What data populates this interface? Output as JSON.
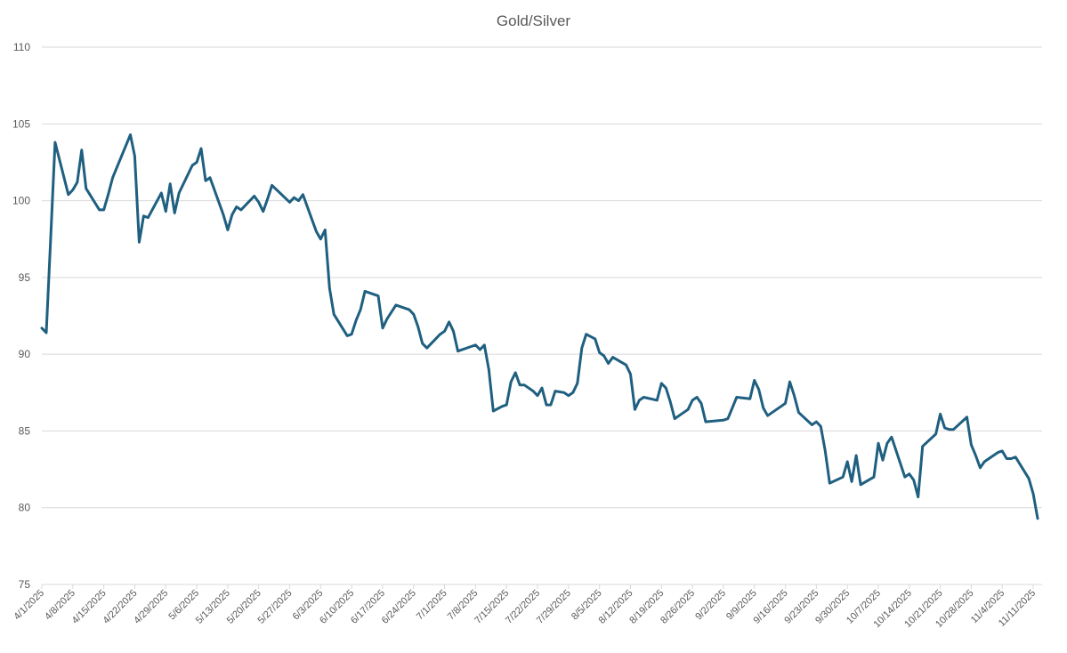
{
  "chart_data": {
    "type": "line",
    "title": "Gold/Silver",
    "xlabel": "",
    "ylabel": "",
    "ylim": [
      75,
      110
    ],
    "yticks": [
      75,
      80,
      85,
      90,
      95,
      100,
      105,
      110
    ],
    "grid": true,
    "legend": "none",
    "x_start": "4/1/2025",
    "x_end": "11/13/2025",
    "xtick_labels": [
      "4/1/2025",
      "4/8/2025",
      "4/15/2025",
      "4/22/2025",
      "4/29/2025",
      "5/6/2025",
      "5/13/2025",
      "5/20/2025",
      "5/27/2025",
      "6/3/2025",
      "6/10/2025",
      "6/17/2025",
      "6/24/2025",
      "7/1/2025",
      "7/8/2025",
      "7/15/2025",
      "7/22/2025",
      "7/29/2025",
      "8/5/2025",
      "8/12/2025",
      "8/19/2025",
      "8/26/2025",
      "9/2/2025",
      "9/9/2025",
      "9/16/2025",
      "9/23/2025",
      "9/30/2025",
      "10/7/2025",
      "10/14/2025",
      "10/21/2025",
      "10/28/2025",
      "11/4/2025",
      "11/11/2025"
    ],
    "series": [
      {
        "name": "",
        "color": "#1f5f80",
        "points": [
          [
            "4/1/2025",
            91.7
          ],
          [
            "4/2/2025",
            91.4
          ],
          [
            "4/3/2025",
            97.5
          ],
          [
            "4/4/2025",
            103.8
          ],
          [
            "4/7/2025",
            100.4
          ],
          [
            "4/8/2025",
            100.7
          ],
          [
            "4/9/2025",
            101.2
          ],
          [
            "4/10/2025",
            103.3
          ],
          [
            "4/11/2025",
            100.8
          ],
          [
            "4/14/2025",
            99.4
          ],
          [
            "4/15/2025",
            99.4
          ],
          [
            "4/16/2025",
            100.4
          ],
          [
            "4/17/2025",
            101.5
          ],
          [
            "4/21/2025",
            104.3
          ],
          [
            "4/22/2025",
            102.9
          ],
          [
            "4/23/2025",
            97.3
          ],
          [
            "4/24/2025",
            99.0
          ],
          [
            "4/25/2025",
            98.9
          ],
          [
            "4/28/2025",
            100.5
          ],
          [
            "4/29/2025",
            99.3
          ],
          [
            "4/30/2025",
            101.1
          ],
          [
            "5/1/2025",
            99.2
          ],
          [
            "5/2/2025",
            100.5
          ],
          [
            "5/5/2025",
            102.3
          ],
          [
            "5/6/2025",
            102.5
          ],
          [
            "5/7/2025",
            103.4
          ],
          [
            "5/8/2025",
            101.3
          ],
          [
            "5/9/2025",
            101.5
          ],
          [
            "5/12/2025",
            99.1
          ],
          [
            "5/13/2025",
            98.1
          ],
          [
            "5/14/2025",
            99.1
          ],
          [
            "5/15/2025",
            99.6
          ],
          [
            "5/16/2025",
            99.4
          ],
          [
            "5/19/2025",
            100.3
          ],
          [
            "5/20/2025",
            99.9
          ],
          [
            "5/21/2025",
            99.3
          ],
          [
            "5/22/2025",
            100.1
          ],
          [
            "5/23/2025",
            101.0
          ],
          [
            "5/27/2025",
            99.9
          ],
          [
            "5/28/2025",
            100.2
          ],
          [
            "5/29/2025",
            100.0
          ],
          [
            "5/30/2025",
            100.4
          ],
          [
            "6/2/2025",
            98.0
          ],
          [
            "6/3/2025",
            97.5
          ],
          [
            "6/4/2025",
            98.1
          ],
          [
            "6/5/2025",
            94.3
          ],
          [
            "6/6/2025",
            92.6
          ],
          [
            "6/9/2025",
            91.2
          ],
          [
            "6/10/2025",
            91.3
          ],
          [
            "6/11/2025",
            92.2
          ],
          [
            "6/12/2025",
            92.9
          ],
          [
            "6/13/2025",
            94.1
          ],
          [
            "6/16/2025",
            93.8
          ],
          [
            "6/17/2025",
            91.7
          ],
          [
            "6/18/2025",
            92.3
          ],
          [
            "6/20/2025",
            93.2
          ],
          [
            "6/23/2025",
            92.9
          ],
          [
            "6/24/2025",
            92.6
          ],
          [
            "6/25/2025",
            91.8
          ],
          [
            "6/26/2025",
            90.7
          ],
          [
            "6/27/2025",
            90.4
          ],
          [
            "6/30/2025",
            91.3
          ],
          [
            "7/1/2025",
            91.5
          ],
          [
            "7/2/2025",
            92.1
          ],
          [
            "7/3/2025",
            91.5
          ],
          [
            "7/4/2025",
            90.2
          ],
          [
            "7/7/2025",
            90.5
          ],
          [
            "7/8/2025",
            90.6
          ],
          [
            "7/9/2025",
            90.3
          ],
          [
            "7/10/2025",
            90.6
          ],
          [
            "7/11/2025",
            89.0
          ],
          [
            "7/12/2025",
            86.3
          ],
          [
            "7/14/2025",
            86.6
          ],
          [
            "7/15/2025",
            86.7
          ],
          [
            "7/16/2025",
            88.2
          ],
          [
            "7/17/2025",
            88.8
          ],
          [
            "7/18/2025",
            88.0
          ],
          [
            "7/19/2025",
            88.0
          ],
          [
            "7/21/2025",
            87.6
          ],
          [
            "7/22/2025",
            87.3
          ],
          [
            "7/23/2025",
            87.8
          ],
          [
            "7/24/2025",
            86.7
          ],
          [
            "7/25/2025",
            86.7
          ],
          [
            "7/26/2025",
            87.6
          ],
          [
            "7/28/2025",
            87.5
          ],
          [
            "7/29/2025",
            87.3
          ],
          [
            "7/30/2025",
            87.5
          ],
          [
            "7/31/2025",
            88.1
          ],
          [
            "8/1/2025",
            90.4
          ],
          [
            "8/2/2025",
            91.3
          ],
          [
            "8/4/2025",
            91.0
          ],
          [
            "8/5/2025",
            90.1
          ],
          [
            "8/6/2025",
            89.9
          ],
          [
            "8/7/2025",
            89.4
          ],
          [
            "8/8/2025",
            89.8
          ],
          [
            "8/11/2025",
            89.3
          ],
          [
            "8/12/2025",
            88.7
          ],
          [
            "8/13/2025",
            86.4
          ],
          [
            "8/14/2025",
            87.0
          ],
          [
            "8/15/2025",
            87.2
          ],
          [
            "8/18/2025",
            87.0
          ],
          [
            "8/19/2025",
            88.1
          ],
          [
            "8/20/2025",
            87.8
          ],
          [
            "8/21/2025",
            86.9
          ],
          [
            "8/22/2025",
            85.8
          ],
          [
            "8/25/2025",
            86.4
          ],
          [
            "8/26/2025",
            87.0
          ],
          [
            "8/27/2025",
            87.2
          ],
          [
            "8/28/2025",
            86.8
          ],
          [
            "8/29/2025",
            85.6
          ],
          [
            "9/2/2025",
            85.7
          ],
          [
            "9/3/2025",
            85.8
          ],
          [
            "9/4/2025",
            86.5
          ],
          [
            "9/5/2025",
            87.2
          ],
          [
            "9/8/2025",
            87.1
          ],
          [
            "9/9/2025",
            88.3
          ],
          [
            "9/10/2025",
            87.7
          ],
          [
            "9/11/2025",
            86.5
          ],
          [
            "9/12/2025",
            86.0
          ],
          [
            "9/15/2025",
            86.6
          ],
          [
            "9/16/2025",
            86.8
          ],
          [
            "9/17/2025",
            88.2
          ],
          [
            "9/18/2025",
            87.3
          ],
          [
            "9/19/2025",
            86.2
          ],
          [
            "9/22/2025",
            85.4
          ],
          [
            "9/23/2025",
            85.6
          ],
          [
            "9/24/2025",
            85.3
          ],
          [
            "9/25/2025",
            83.7
          ],
          [
            "9/26/2025",
            81.6
          ],
          [
            "9/29/2025",
            82.0
          ],
          [
            "9/30/2025",
            83.0
          ],
          [
            "10/1/2025",
            81.7
          ],
          [
            "10/2/2025",
            83.4
          ],
          [
            "10/3/2025",
            81.5
          ],
          [
            "10/6/2025",
            82.0
          ],
          [
            "10/7/2025",
            84.2
          ],
          [
            "10/8/2025",
            83.1
          ],
          [
            "10/9/2025",
            84.2
          ],
          [
            "10/10/2025",
            84.6
          ],
          [
            "10/13/2025",
            82.0
          ],
          [
            "10/14/2025",
            82.2
          ],
          [
            "10/15/2025",
            81.8
          ],
          [
            "10/16/2025",
            80.7
          ],
          [
            "10/17/2025",
            84.0
          ],
          [
            "10/20/2025",
            84.8
          ],
          [
            "10/21/2025",
            86.1
          ],
          [
            "10/22/2025",
            85.2
          ],
          [
            "10/23/2025",
            85.1
          ],
          [
            "10/24/2025",
            85.1
          ],
          [
            "10/27/2025",
            85.9
          ],
          [
            "10/28/2025",
            84.1
          ],
          [
            "10/29/2025",
            83.4
          ],
          [
            "10/30/2025",
            82.6
          ],
          [
            "10/31/2025",
            83.0
          ],
          [
            "11/3/2025",
            83.6
          ],
          [
            "11/4/2025",
            83.7
          ],
          [
            "11/5/2025",
            83.2
          ],
          [
            "11/6/2025",
            83.2
          ],
          [
            "11/7/2025",
            83.3
          ],
          [
            "11/10/2025",
            81.9
          ],
          [
            "11/11/2025",
            80.9
          ],
          [
            "11/12/2025",
            79.3
          ]
        ]
      }
    ]
  }
}
